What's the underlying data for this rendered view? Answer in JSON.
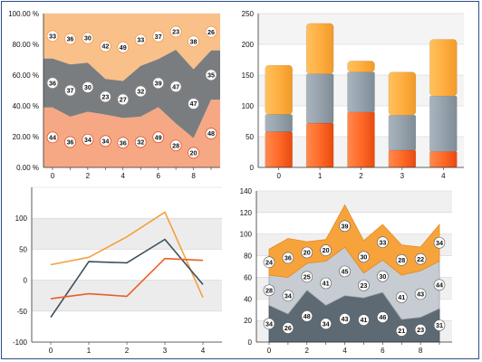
{
  "chart_data": [
    {
      "type": "area",
      "stacking": "percent",
      "x": [
        0,
        1,
        2,
        3,
        4,
        5,
        6,
        7,
        8,
        9
      ],
      "series": [
        {
          "values": [
            44,
            36,
            34,
            34,
            36,
            32,
            49,
            28,
            20,
            48
          ],
          "color": "#f47a4c"
        },
        {
          "values": [
            36,
            37,
            30,
            23,
            27,
            32,
            39,
            47,
            47,
            35
          ],
          "color": "#6f7274"
        },
        {
          "values": [
            33,
            36,
            30,
            42,
            49,
            33,
            37,
            23,
            38,
            26
          ],
          "color": "#f5a35a"
        }
      ],
      "xticks": [
        "0",
        "2",
        "4",
        "6",
        "8"
      ],
      "yticks": [
        "0.00 %",
        "20.00 %",
        "40.00 %",
        "60.00 %",
        "80.00 %",
        "100.00 %"
      ],
      "ylim": [
        0,
        100
      ],
      "grid": true
    },
    {
      "type": "bar",
      "stacking": "normal",
      "categories": [
        "0",
        "1",
        "2",
        "3",
        "4"
      ],
      "series": [
        {
          "values": [
            58,
            72,
            90,
            28,
            26
          ],
          "color": "#ff5a1a"
        },
        {
          "values": [
            28,
            80,
            65,
            57,
            90
          ],
          "color": "#95a2ad"
        },
        {
          "values": [
            80,
            82,
            18,
            70,
            92
          ],
          "color": "#ffae40"
        }
      ],
      "yticks": [
        "0",
        "50",
        "100",
        "150",
        "200",
        "250"
      ],
      "ylim": [
        0,
        250
      ],
      "grid": true
    },
    {
      "type": "line",
      "x": [
        0,
        1,
        2,
        3,
        4
      ],
      "series": [
        {
          "values": [
            25,
            37,
            70,
            110,
            -28
          ],
          "color": "#f5a03c"
        },
        {
          "values": [
            -60,
            30,
            28,
            66,
            -7
          ],
          "color": "#3d4f5c"
        },
        {
          "values": [
            -30,
            -22,
            -26,
            35,
            32
          ],
          "color": "#e8602a"
        }
      ],
      "xticks": [
        "0",
        "1",
        "2",
        "3",
        "4"
      ],
      "yticks": [
        "-100",
        "-50",
        "0",
        "50",
        "100"
      ],
      "ylim": [
        -100,
        150
      ],
      "grid": true
    },
    {
      "type": "area",
      "stacking": "normal",
      "x": [
        0,
        1,
        2,
        3,
        4,
        5,
        6,
        7,
        8,
        9
      ],
      "series": [
        {
          "values": [
            34,
            26,
            48,
            34,
            43,
            41,
            46,
            21,
            23,
            31
          ],
          "color": "#5e6a73"
        },
        {
          "values": [
            28,
            34,
            25,
            41,
            45,
            23,
            30,
            41,
            43,
            44
          ],
          "color": "#c6ccd2"
        },
        {
          "values": [
            24,
            36,
            20,
            20,
            39,
            30,
            33,
            28,
            22,
            34
          ],
          "color": "#f7a33b"
        }
      ],
      "xticks": [
        "0",
        "2",
        "4",
        "6",
        "8"
      ],
      "yticks": [
        "0",
        "20",
        "40",
        "60",
        "80",
        "100",
        "120",
        "140"
      ],
      "ylim": [
        0,
        140
      ],
      "grid": true
    }
  ]
}
